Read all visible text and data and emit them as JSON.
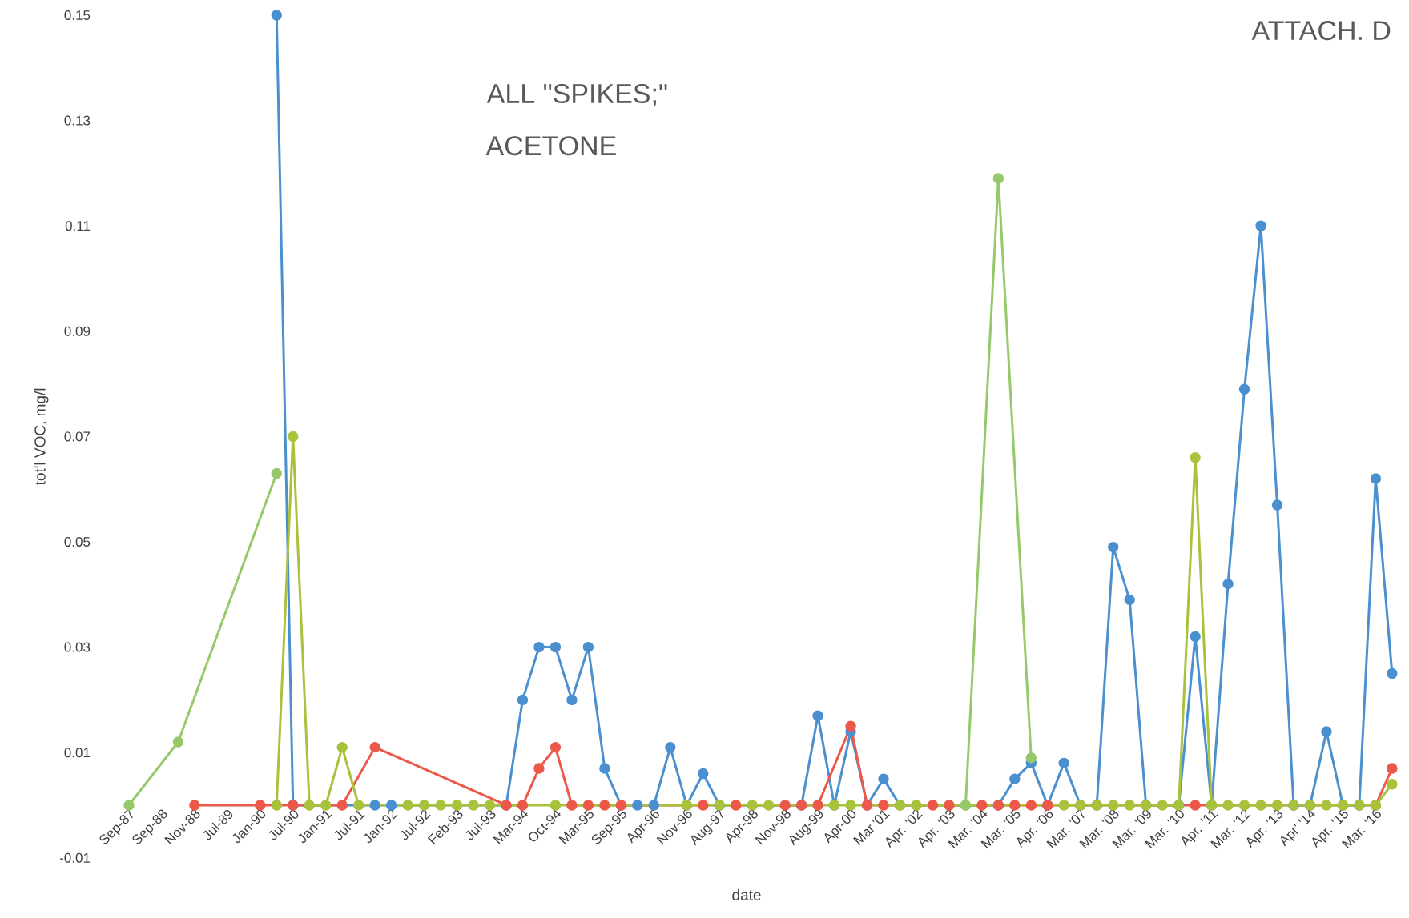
{
  "chart_data": {
    "type": "line",
    "xlabel": "date",
    "ylabel": "tot'l VOC, mg/l",
    "annotations": [
      "ALL \"SPIKES;\"",
      "ACETONE",
      "ATTACH. D"
    ],
    "categories": [
      "Sep-87",
      null,
      "Sep-88",
      null,
      "Nov-88",
      null,
      "Jul-89",
      null,
      "Jan-90",
      null,
      "Jul-90",
      null,
      "Jan-91",
      null,
      "Jul-91",
      null,
      "Jan-92",
      null,
      "Jul-92",
      null,
      "Feb-93",
      null,
      "Jul-93",
      null,
      "Mar-94",
      null,
      "Oct-94",
      null,
      "Mar-95",
      null,
      "Sep-95",
      null,
      "Apr-96",
      null,
      "Nov-96",
      null,
      "Aug-97",
      null,
      "Apr-98",
      null,
      "Nov-98",
      null,
      "Aug-99",
      null,
      "Apr-00",
      null,
      "Mar.'01",
      null,
      "Apr. '02",
      null,
      "Apr. '03",
      null,
      "Mar. '04",
      null,
      "Mar. '05",
      null,
      "Apr. '06",
      null,
      "Mar. '07",
      null,
      "Mar. '08",
      null,
      "Mar. '09",
      null,
      "Mar. '10",
      null,
      "Apr. '11",
      null,
      "Mar. '12",
      null,
      "Apr. '13",
      null,
      "Apr' '14",
      null,
      "Apr. '15",
      null,
      "Mar. '16",
      null
    ],
    "ylim": [
      -0.01,
      0.15
    ],
    "yticks": [
      -0.01,
      0.01,
      0.03,
      0.05,
      0.07,
      0.09,
      0.11,
      0.13,
      0.15
    ],
    "marker": "circle",
    "series": [
      {
        "color": "#4a8fd0",
        "values": [
          null,
          null,
          null,
          null,
          null,
          null,
          null,
          null,
          null,
          0.15,
          0,
          null,
          null,
          null,
          null,
          0,
          0,
          null,
          null,
          null,
          null,
          null,
          null,
          0,
          0.02,
          0.03,
          0.03,
          0.02,
          0.03,
          0.007,
          0,
          0,
          0,
          0.011,
          0,
          0.006,
          0,
          null,
          null,
          null,
          null,
          0,
          0.017,
          0,
          0.014,
          0,
          0.005,
          0,
          null,
          null,
          null,
          null,
          null,
          0,
          0.005,
          0.008,
          0,
          0.008,
          0,
          0,
          0.049,
          0.039,
          0,
          null,
          0,
          0.032,
          0,
          0.042,
          0.079,
          0.11,
          0.057,
          0,
          0,
          0.014,
          0,
          0,
          0.062,
          0.025
        ]
      },
      {
        "color": "#ec5849",
        "values": [
          null,
          null,
          null,
          null,
          0,
          null,
          null,
          null,
          0,
          null,
          0,
          null,
          null,
          0,
          null,
          0.011,
          null,
          null,
          null,
          null,
          null,
          null,
          null,
          0,
          0,
          0.007,
          0.011,
          0,
          0,
          0,
          0,
          null,
          null,
          null,
          null,
          0,
          null,
          0,
          null,
          null,
          0,
          0,
          0,
          null,
          0.015,
          0,
          0,
          null,
          null,
          0,
          0,
          null,
          0,
          0,
          0,
          0,
          0,
          null,
          null,
          null,
          null,
          null,
          null,
          null,
          null,
          0,
          null,
          null,
          null,
          null,
          null,
          null,
          null,
          null,
          null,
          null,
          0,
          0.007
        ]
      },
      {
        "color": "#a8c23c",
        "values": [
          null,
          null,
          null,
          null,
          null,
          null,
          null,
          null,
          null,
          0,
          0.07,
          0,
          0,
          0.011,
          0,
          null,
          null,
          0,
          0,
          0,
          0,
          0,
          0,
          null,
          null,
          null,
          0,
          null,
          null,
          null,
          null,
          null,
          null,
          null,
          0,
          null,
          0,
          null,
          0,
          0,
          null,
          null,
          null,
          0,
          0,
          null,
          null,
          0,
          0,
          null,
          null,
          0,
          null,
          null,
          null,
          null,
          null,
          0,
          0,
          0,
          0,
          0,
          0,
          0,
          0,
          0.066,
          0,
          0,
          0,
          0,
          0,
          0,
          0,
          0,
          0,
          0,
          0,
          0.004
        ]
      },
      {
        "color": "#96c96a",
        "values": [
          0,
          null,
          null,
          0.012,
          null,
          null,
          null,
          null,
          null,
          0.063,
          null,
          null,
          null,
          null,
          null,
          null,
          null,
          null,
          null,
          null,
          null,
          null,
          null,
          null,
          null,
          null,
          null,
          null,
          null,
          null,
          null,
          null,
          null,
          null,
          null,
          null,
          null,
          null,
          null,
          null,
          null,
          null,
          null,
          null,
          null,
          null,
          null,
          null,
          null,
          null,
          null,
          null,
          null,
          null,
          null,
          null,
          null,
          null,
          null,
          null,
          null,
          null,
          null,
          null,
          null,
          null,
          null,
          null,
          null,
          null,
          null,
          null,
          null,
          null,
          null,
          null,
          null,
          null
        ]
      },
      {
        "color": "#96c96a",
        "values": [
          null,
          null,
          null,
          null,
          null,
          null,
          null,
          null,
          null,
          null,
          null,
          null,
          null,
          null,
          null,
          null,
          null,
          null,
          null,
          null,
          null,
          null,
          null,
          null,
          null,
          null,
          null,
          null,
          null,
          null,
          null,
          null,
          null,
          null,
          null,
          null,
          null,
          null,
          null,
          null,
          null,
          null,
          null,
          null,
          null,
          null,
          null,
          null,
          null,
          null,
          null,
          0,
          null,
          0.119,
          null,
          0.009,
          null,
          null,
          null,
          null,
          null,
          null,
          null,
          null,
          null,
          null,
          null,
          null,
          null,
          null,
          null,
          null,
          null,
          null,
          null,
          null,
          null,
          null
        ]
      }
    ]
  }
}
